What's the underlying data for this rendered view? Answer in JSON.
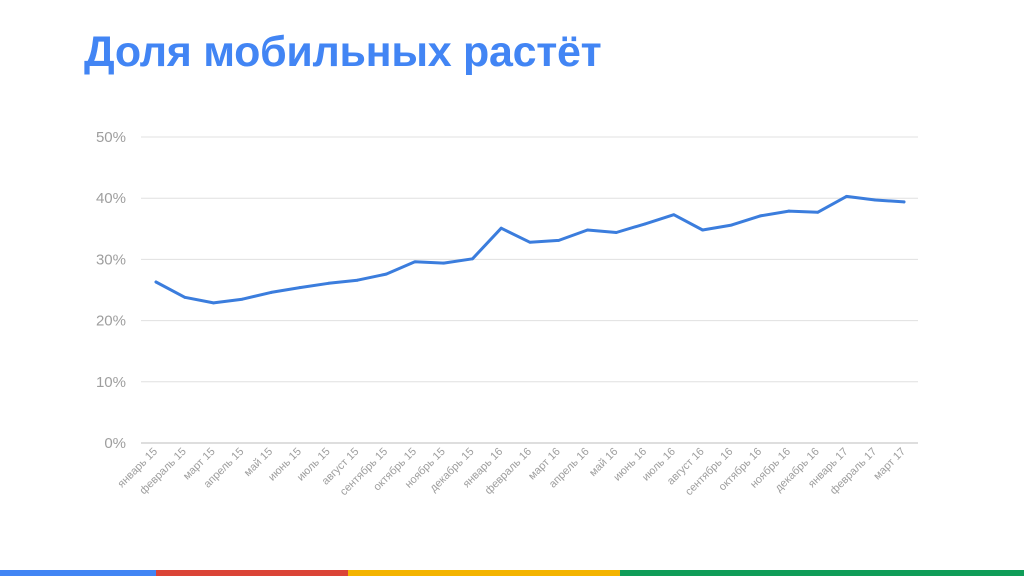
{
  "slide": {
    "title": "Доля мобильных растёт"
  },
  "theme": {
    "title_color": "#4285f4",
    "line_color": "#3b7ddd",
    "grid_color": "#e0e0e0",
    "tick_color": "#9e9e9e",
    "bar_colors": [
      "#4285f4",
      "#db4437",
      "#f4b400",
      "#0f9d58"
    ]
  },
  "chart_data": {
    "type": "line",
    "title": "",
    "xlabel": "",
    "ylabel": "",
    "ylim": [
      0,
      50
    ],
    "yticks": [
      0,
      10,
      20,
      30,
      40,
      50
    ],
    "ytick_labels": [
      "0%",
      "10%",
      "20%",
      "30%",
      "40%",
      "50%"
    ],
    "grid": true,
    "legend": "none",
    "categories": [
      "январь 15",
      "февраль 15",
      "март 15",
      "апрель 15",
      "май 15",
      "июнь 15",
      "июль 15",
      "август 15",
      "сентябрь 15",
      "октябрь 15",
      "ноябрь 15",
      "декабрь 15",
      "январь 16",
      "февраль 16",
      "март 16",
      "апрель 16",
      "май 16",
      "июнь 16",
      "июль 16",
      "август 16",
      "сентябрь 16",
      "октябрь 16",
      "ноябрь 16",
      "декабрь 16",
      "январь 17",
      "февраль 17",
      "март 17"
    ],
    "series": [
      {
        "values": [
          26.3,
          23.8,
          22.9,
          23.5,
          24.6,
          25.4,
          26.1,
          26.6,
          27.6,
          29.6,
          29.4,
          30.1,
          35.1,
          32.8,
          33.1,
          34.8,
          34.4,
          35.8,
          37.3,
          34.8,
          35.6,
          37.1,
          37.9,
          37.7,
          40.3,
          39.7,
          39.4
        ]
      }
    ]
  }
}
